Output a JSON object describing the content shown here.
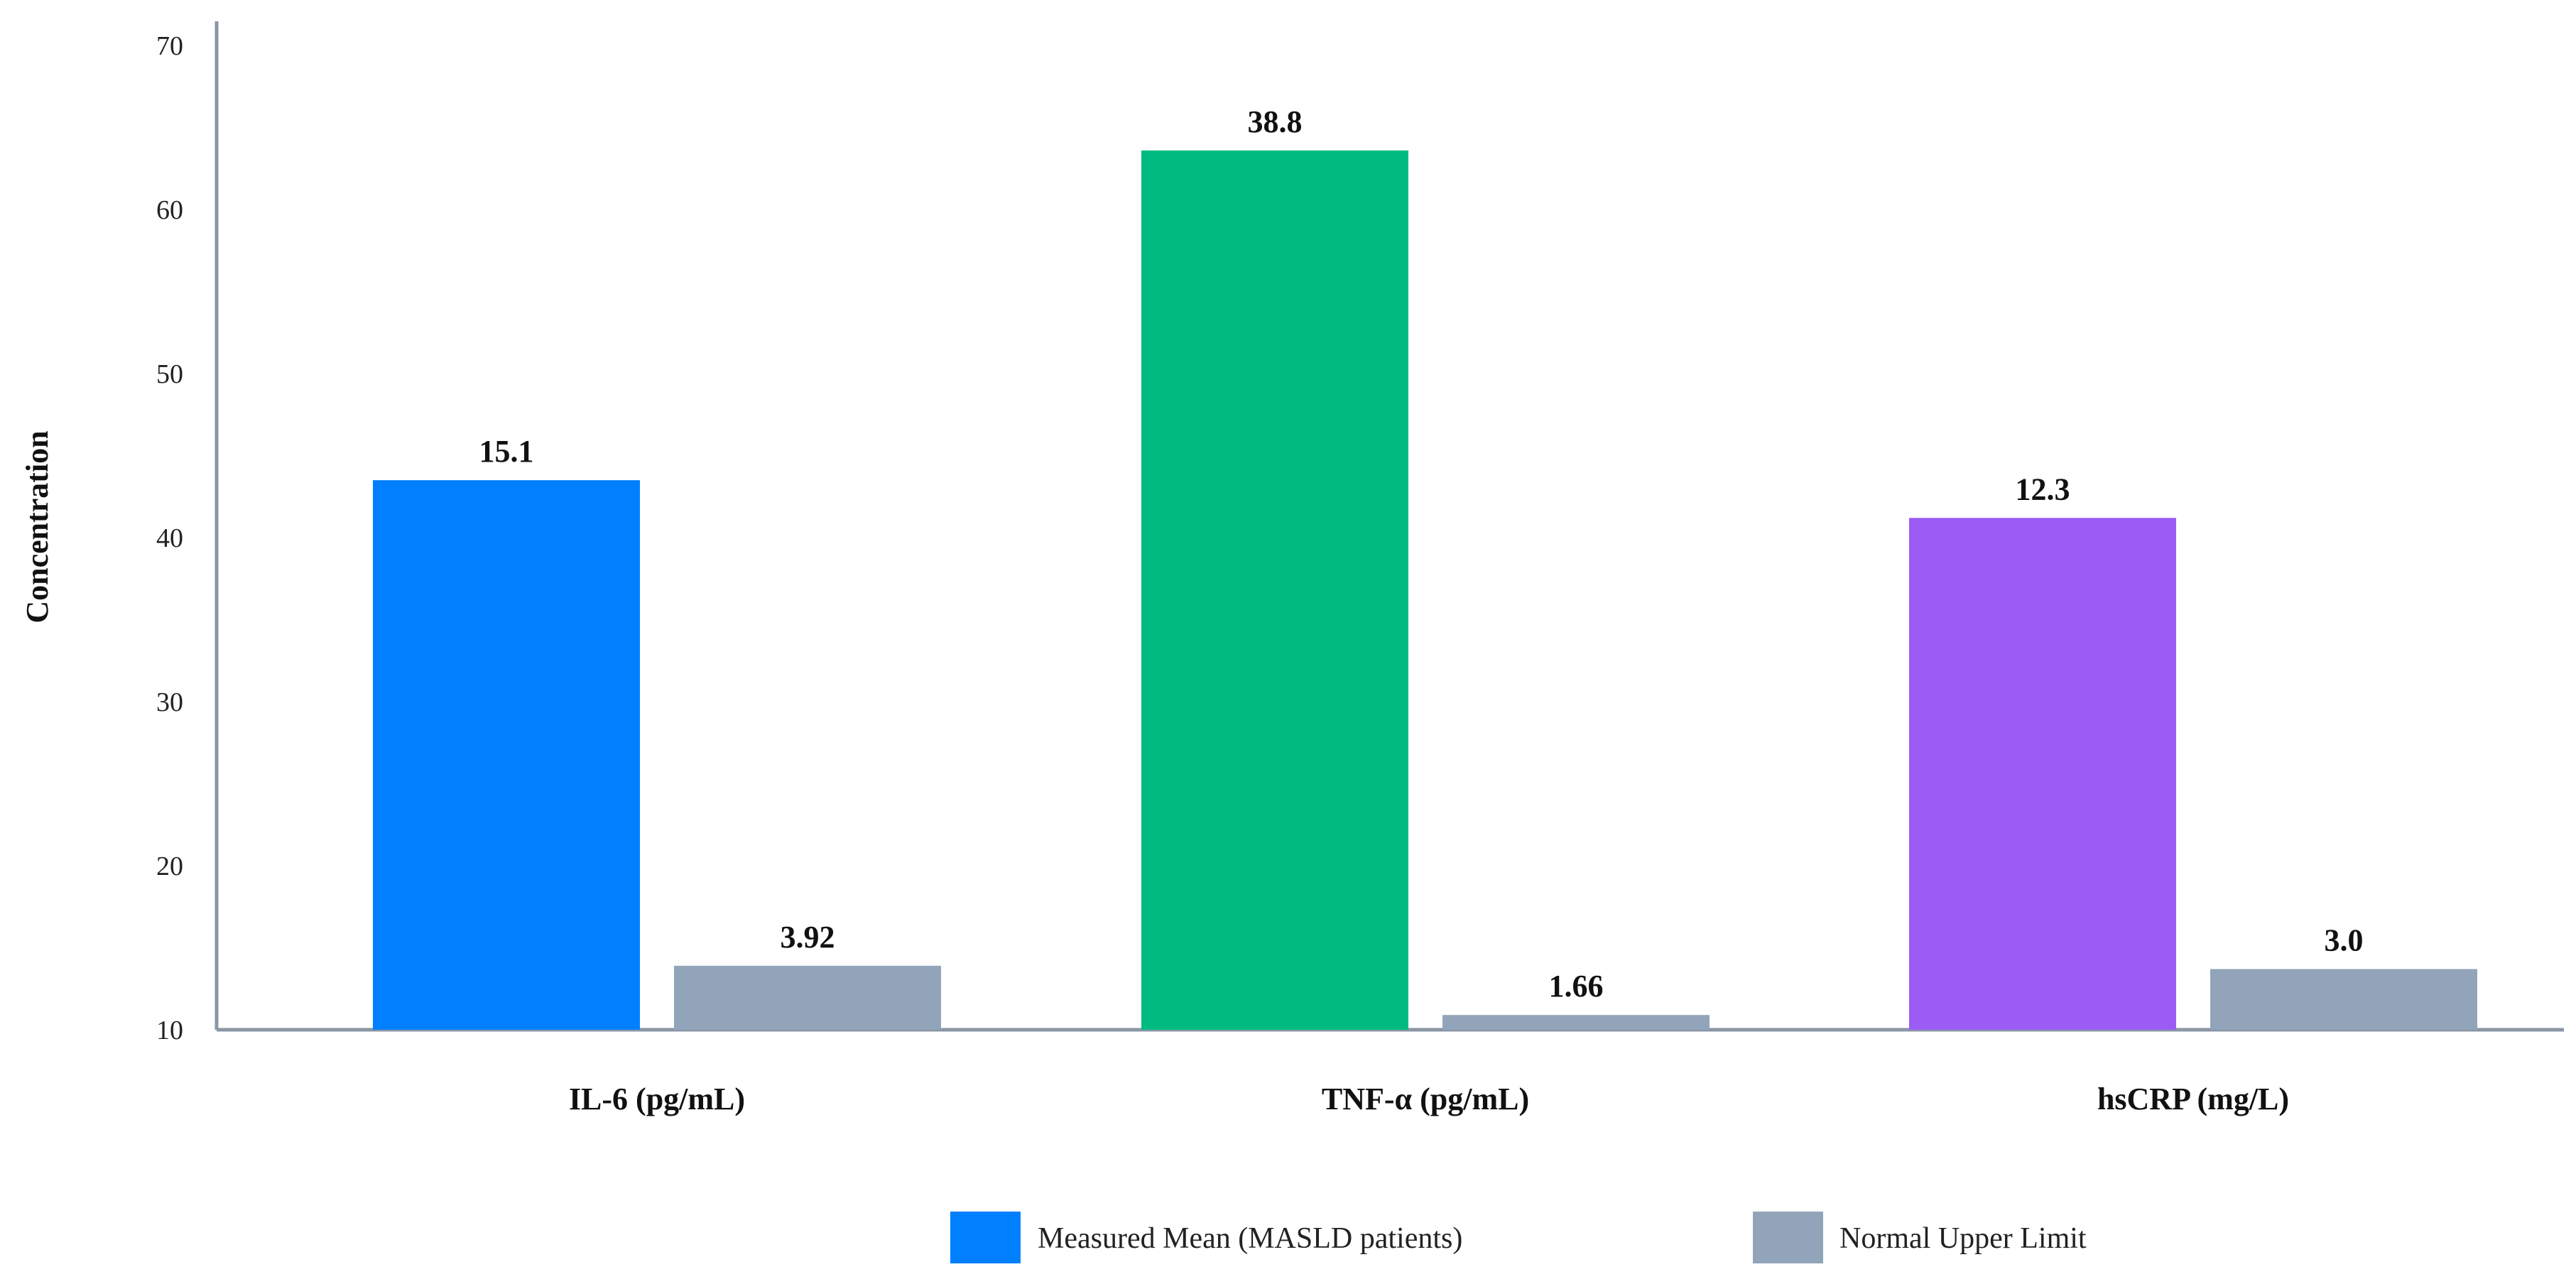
{
  "chart_data": {
    "type": "bar",
    "title": "",
    "ylabel": "Concentration",
    "xlabel": "",
    "ylim": [
      10,
      70
    ],
    "yticks": [
      10,
      20,
      30,
      40,
      50,
      60,
      70
    ],
    "grid": false,
    "legend_position": "bottom-center",
    "categories": [
      "IL-6 (pg/mL)",
      "TNF-α (pg/mL)",
      "hsCRP (mg/L)"
    ],
    "series": [
      {
        "name": "Measured Mean (MASLD patients)",
        "plotted_values": [
          43.5,
          63.6,
          41.2
        ],
        "labels": [
          "15.1",
          "38.8",
          "12.3"
        ],
        "colors": [
          "#0080ff",
          "#00bb80",
          "#9b5cf6"
        ]
      },
      {
        "name": "Normal Upper Limit",
        "plotted_values": [
          13.9,
          10.9,
          13.7
        ],
        "labels": [
          "3.92",
          "1.66",
          "3.0"
        ],
        "colors": [
          "#91a4ba",
          "#91a4ba",
          "#91a4ba"
        ]
      }
    ],
    "legend": [
      {
        "label": "Measured Mean (MASLD patients)",
        "color": "#0080ff"
      },
      {
        "label": "Normal Upper Limit",
        "color": "#91a4ba"
      }
    ],
    "axis_color": "#8a96a6"
  }
}
